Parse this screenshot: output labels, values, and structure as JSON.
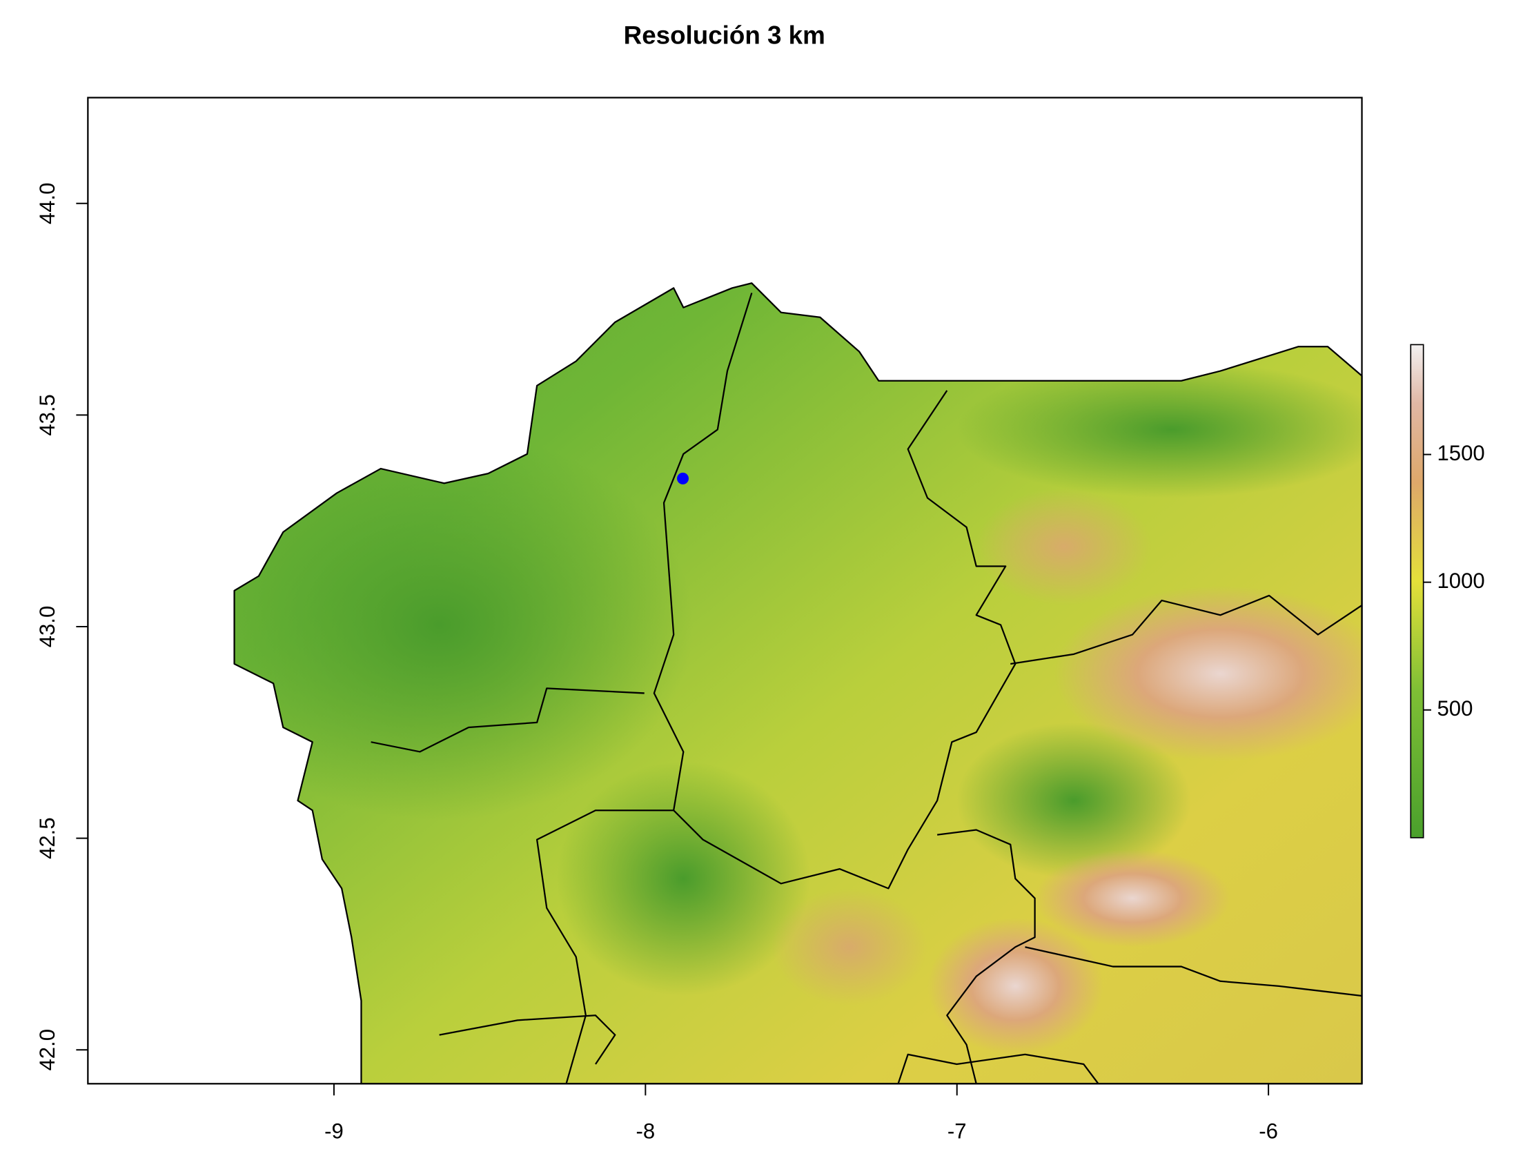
{
  "title": "Resolución 3 km",
  "map": {
    "xlim": [
      -9.79,
      -5.7
    ],
    "ylim": [
      41.92,
      44.25
    ],
    "xticks": [
      -9,
      -8,
      -7,
      -6
    ],
    "yticks": [
      {
        "value": 42,
        "label": "42.0"
      },
      {
        "value": 42.5,
        "label": "42.5"
      },
      {
        "value": 43,
        "label": "43.0"
      },
      {
        "value": 43.5,
        "label": "43.5"
      },
      {
        "value": 44,
        "label": "44.0"
      }
    ],
    "point": {
      "x": -7.88,
      "y": 43.35,
      "color": "#0000ff"
    },
    "legend": {
      "lim": [
        0,
        1930
      ],
      "ticks": [
        500,
        1000,
        1500
      ]
    }
  }
}
